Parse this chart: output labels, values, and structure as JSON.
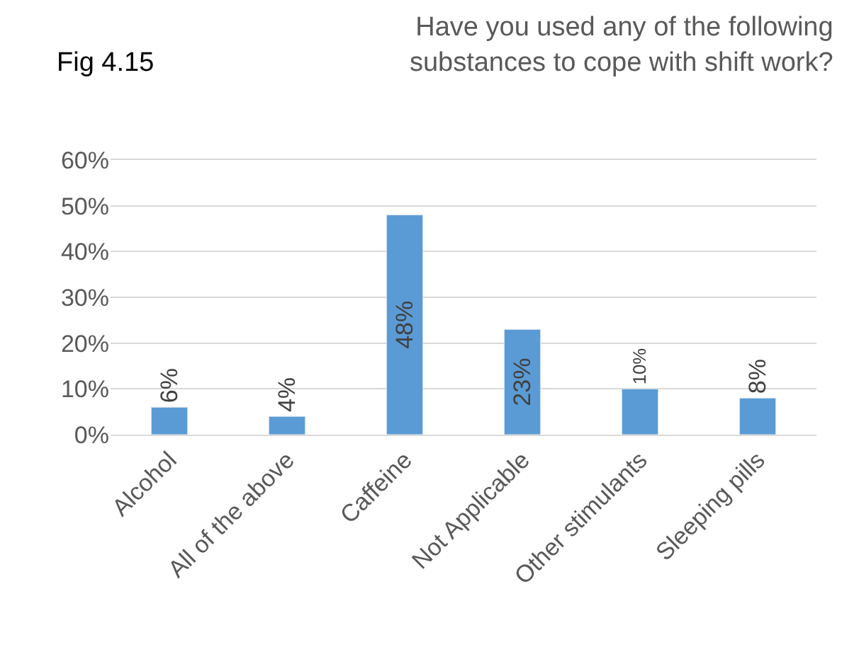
{
  "chart_data": {
    "type": "bar",
    "title": "Have you used any of the following substances to cope with shift work?",
    "annotations": [
      "Fig 4.15"
    ],
    "categories": [
      "Alcohol",
      "All of the above",
      "Caffeine",
      "Not Applicable",
      "Other stimulants",
      "Sleeping pills"
    ],
    "values": [
      6,
      4,
      48,
      23,
      10,
      8
    ],
    "value_labels": [
      "6%",
      "4%",
      "48%",
      "23%",
      "10%",
      "8%"
    ],
    "color": "#5b9bd5",
    "ylim": [
      0,
      60
    ],
    "yticks": [
      {
        "value": 0,
        "label": "0%"
      },
      {
        "value": 10,
        "label": "10%"
      },
      {
        "value": 20,
        "label": "20%"
      },
      {
        "value": 30,
        "label": "30%"
      },
      {
        "value": 40,
        "label": "40%"
      },
      {
        "value": 50,
        "label": "50%"
      },
      {
        "value": 60,
        "label": "60%"
      }
    ],
    "grid": "y",
    "legend": false
  }
}
